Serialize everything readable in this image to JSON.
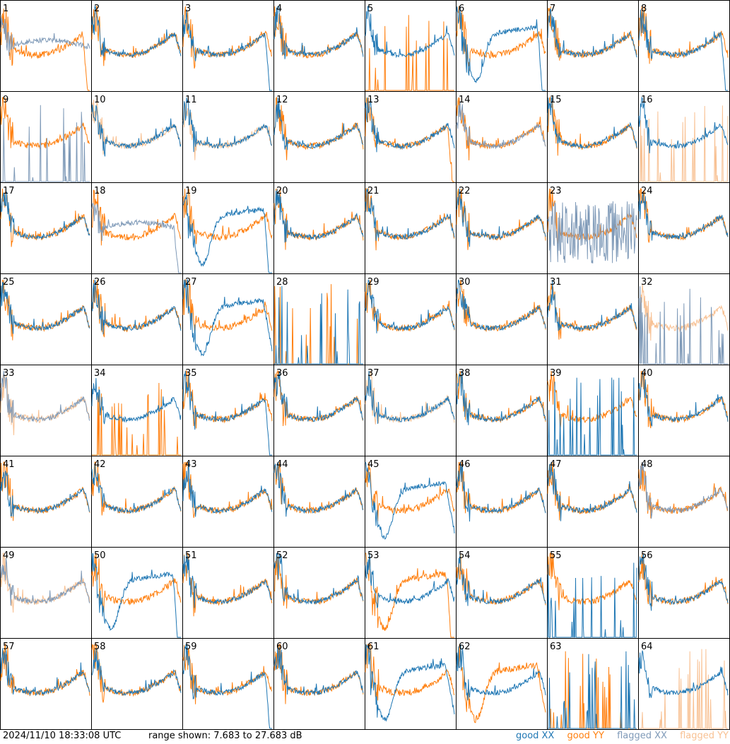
{
  "footer": {
    "timestamp": "2024/11/10 18:33:08 UTC",
    "range": "range shown: 7.683 to 27.683 dB"
  },
  "legend": [
    {
      "label": "good XX",
      "color": "#1f77b4"
    },
    {
      "label": "good YY",
      "color": "#ff7f0e"
    },
    {
      "label": "flagged XX",
      "color": "#7f9ab8"
    },
    {
      "label": "flagged YY",
      "color": "#f8c193"
    }
  ],
  "chart_data": {
    "type": "line",
    "layout": "8x8 small multiples",
    "ylim_db": [
      7.683,
      27.683
    ],
    "series_names": [
      "good XX",
      "good YY",
      "flagged XX",
      "flagged YY"
    ],
    "panels": [
      {
        "label": "1",
        "xx": "flat",
        "yy": "good",
        "dropYY": true
      },
      {
        "label": "2",
        "xx": "good",
        "yy": "good"
      },
      {
        "label": "3",
        "xx": "good",
        "yy": "good",
        "dropXX": true
      },
      {
        "label": "4",
        "xx": "good",
        "yy": "good"
      },
      {
        "label": "5",
        "xx": "good",
        "yy": "spikes"
      },
      {
        "label": "6",
        "xx": "low",
        "yy": "good",
        "dropXX": true
      },
      {
        "label": "7",
        "xx": "good",
        "yy": "good"
      },
      {
        "label": "8",
        "xx": "good",
        "yy": "good",
        "dropXX": true
      },
      {
        "label": "9",
        "xx": "fspikes",
        "yy": "good"
      },
      {
        "label": "10",
        "xx": "good",
        "yy": "fgood"
      },
      {
        "label": "11",
        "xx": "good",
        "yy": "fgood"
      },
      {
        "label": "12",
        "xx": "good",
        "yy": "good"
      },
      {
        "label": "13",
        "xx": "good",
        "yy": "good",
        "dropYY": true
      },
      {
        "label": "14",
        "xx": "fgood",
        "yy": "good"
      },
      {
        "label": "15",
        "xx": "good",
        "yy": "good"
      },
      {
        "label": "16",
        "xx": "good",
        "yy": "fspikes"
      },
      {
        "label": "17",
        "xx": "good",
        "yy": "good"
      },
      {
        "label": "18",
        "xx": "flat",
        "yy": "good",
        "dropXX": true
      },
      {
        "label": "19",
        "xx": "low",
        "yy": "good",
        "dropXX": true
      },
      {
        "label": "20",
        "xx": "good",
        "yy": "good"
      },
      {
        "label": "21",
        "xx": "good",
        "yy": "good"
      },
      {
        "label": "22",
        "xx": "good",
        "yy": "good"
      },
      {
        "label": "23",
        "xx": "fnoisy",
        "yy": "good"
      },
      {
        "label": "24",
        "xx": "good",
        "yy": "good"
      },
      {
        "label": "25",
        "xx": "good",
        "yy": "good"
      },
      {
        "label": "26",
        "xx": "good",
        "yy": "good"
      },
      {
        "label": "27",
        "xx": "low",
        "yy": "good"
      },
      {
        "label": "28",
        "xx": "spikes",
        "yy": "spikes"
      },
      {
        "label": "29",
        "xx": "good",
        "yy": "good"
      },
      {
        "label": "30",
        "xx": "good",
        "yy": "good"
      },
      {
        "label": "31",
        "xx": "good",
        "yy": "good"
      },
      {
        "label": "32",
        "xx": "fspikes",
        "yy": "fgood"
      },
      {
        "label": "33",
        "xx": "fgood",
        "yy": "fgood"
      },
      {
        "label": "34",
        "xx": "good",
        "yy": "spikes"
      },
      {
        "label": "35",
        "xx": "good",
        "yy": "good",
        "dropXX": true
      },
      {
        "label": "36",
        "xx": "good",
        "yy": "good"
      },
      {
        "label": "37",
        "xx": "good",
        "yy": "fgood"
      },
      {
        "label": "38",
        "xx": "good",
        "yy": "good"
      },
      {
        "label": "39",
        "xx": "spikes",
        "yy": "good"
      },
      {
        "label": "40",
        "xx": "good",
        "yy": "good"
      },
      {
        "label": "41",
        "xx": "good",
        "yy": "good"
      },
      {
        "label": "42",
        "xx": "good",
        "yy": "good"
      },
      {
        "label": "43",
        "xx": "good",
        "yy": "good"
      },
      {
        "label": "44",
        "xx": "good",
        "yy": "good"
      },
      {
        "label": "45",
        "xx": "low",
        "yy": "good"
      },
      {
        "label": "46",
        "xx": "good",
        "yy": "good"
      },
      {
        "label": "47",
        "xx": "good",
        "yy": "good"
      },
      {
        "label": "48",
        "xx": "fgood",
        "yy": "good"
      },
      {
        "label": "49",
        "xx": "fgood",
        "yy": "fgood"
      },
      {
        "label": "50",
        "xx": "low",
        "yy": "good",
        "dropXX": true
      },
      {
        "label": "51",
        "xx": "good",
        "yy": "good"
      },
      {
        "label": "52",
        "xx": "good",
        "yy": "good"
      },
      {
        "label": "53",
        "xx": "good",
        "yy": "low",
        "dropYY": true
      },
      {
        "label": "54",
        "xx": "good",
        "yy": "good"
      },
      {
        "label": "55",
        "xx": "spikes",
        "yy": "good"
      },
      {
        "label": "56",
        "xx": "good",
        "yy": "good"
      },
      {
        "label": "57",
        "xx": "good",
        "yy": "good"
      },
      {
        "label": "58",
        "xx": "good",
        "yy": "good"
      },
      {
        "label": "59",
        "xx": "good",
        "yy": "good",
        "dropXX": true
      },
      {
        "label": "60",
        "xx": "good",
        "yy": "good"
      },
      {
        "label": "61",
        "xx": "low",
        "yy": "good"
      },
      {
        "label": "62",
        "xx": "good",
        "yy": "low"
      },
      {
        "label": "63",
        "xx": "spikes",
        "yy": "spikes"
      },
      {
        "label": "64",
        "xx": "good",
        "yy": "fspikes"
      }
    ]
  }
}
